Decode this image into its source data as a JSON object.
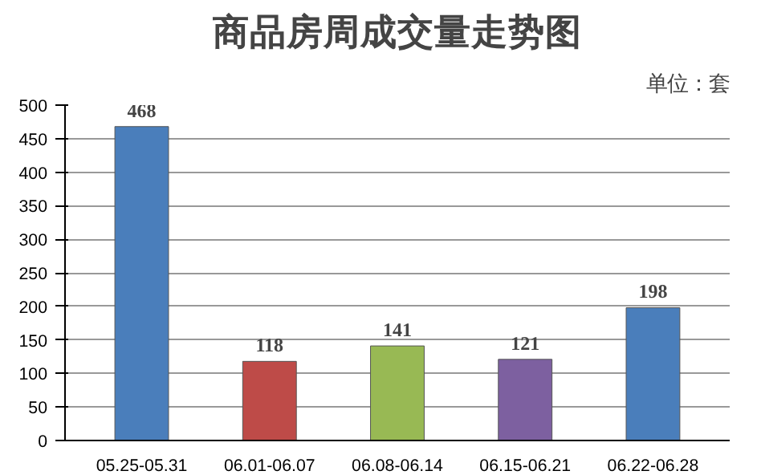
{
  "chart_data": {
    "type": "bar",
    "title": "商品房周成交量走势图",
    "annotations": [
      "单位：套"
    ],
    "categories": [
      "05.25-05.31",
      "06.01-06.07",
      "06.08-06.14",
      "06.15-06.21",
      "06.22-06.28"
    ],
    "values": [
      468,
      118,
      141,
      121,
      198
    ],
    "colors": [
      "#4a7ebb",
      "#be4b48",
      "#98b954",
      "#7d60a0",
      "#4a7ebb"
    ],
    "ylim": [
      0,
      500
    ],
    "yticks": [
      0,
      50,
      100,
      150,
      200,
      250,
      300,
      350,
      400,
      450,
      500
    ],
    "grid": "y",
    "data_labels": true
  }
}
